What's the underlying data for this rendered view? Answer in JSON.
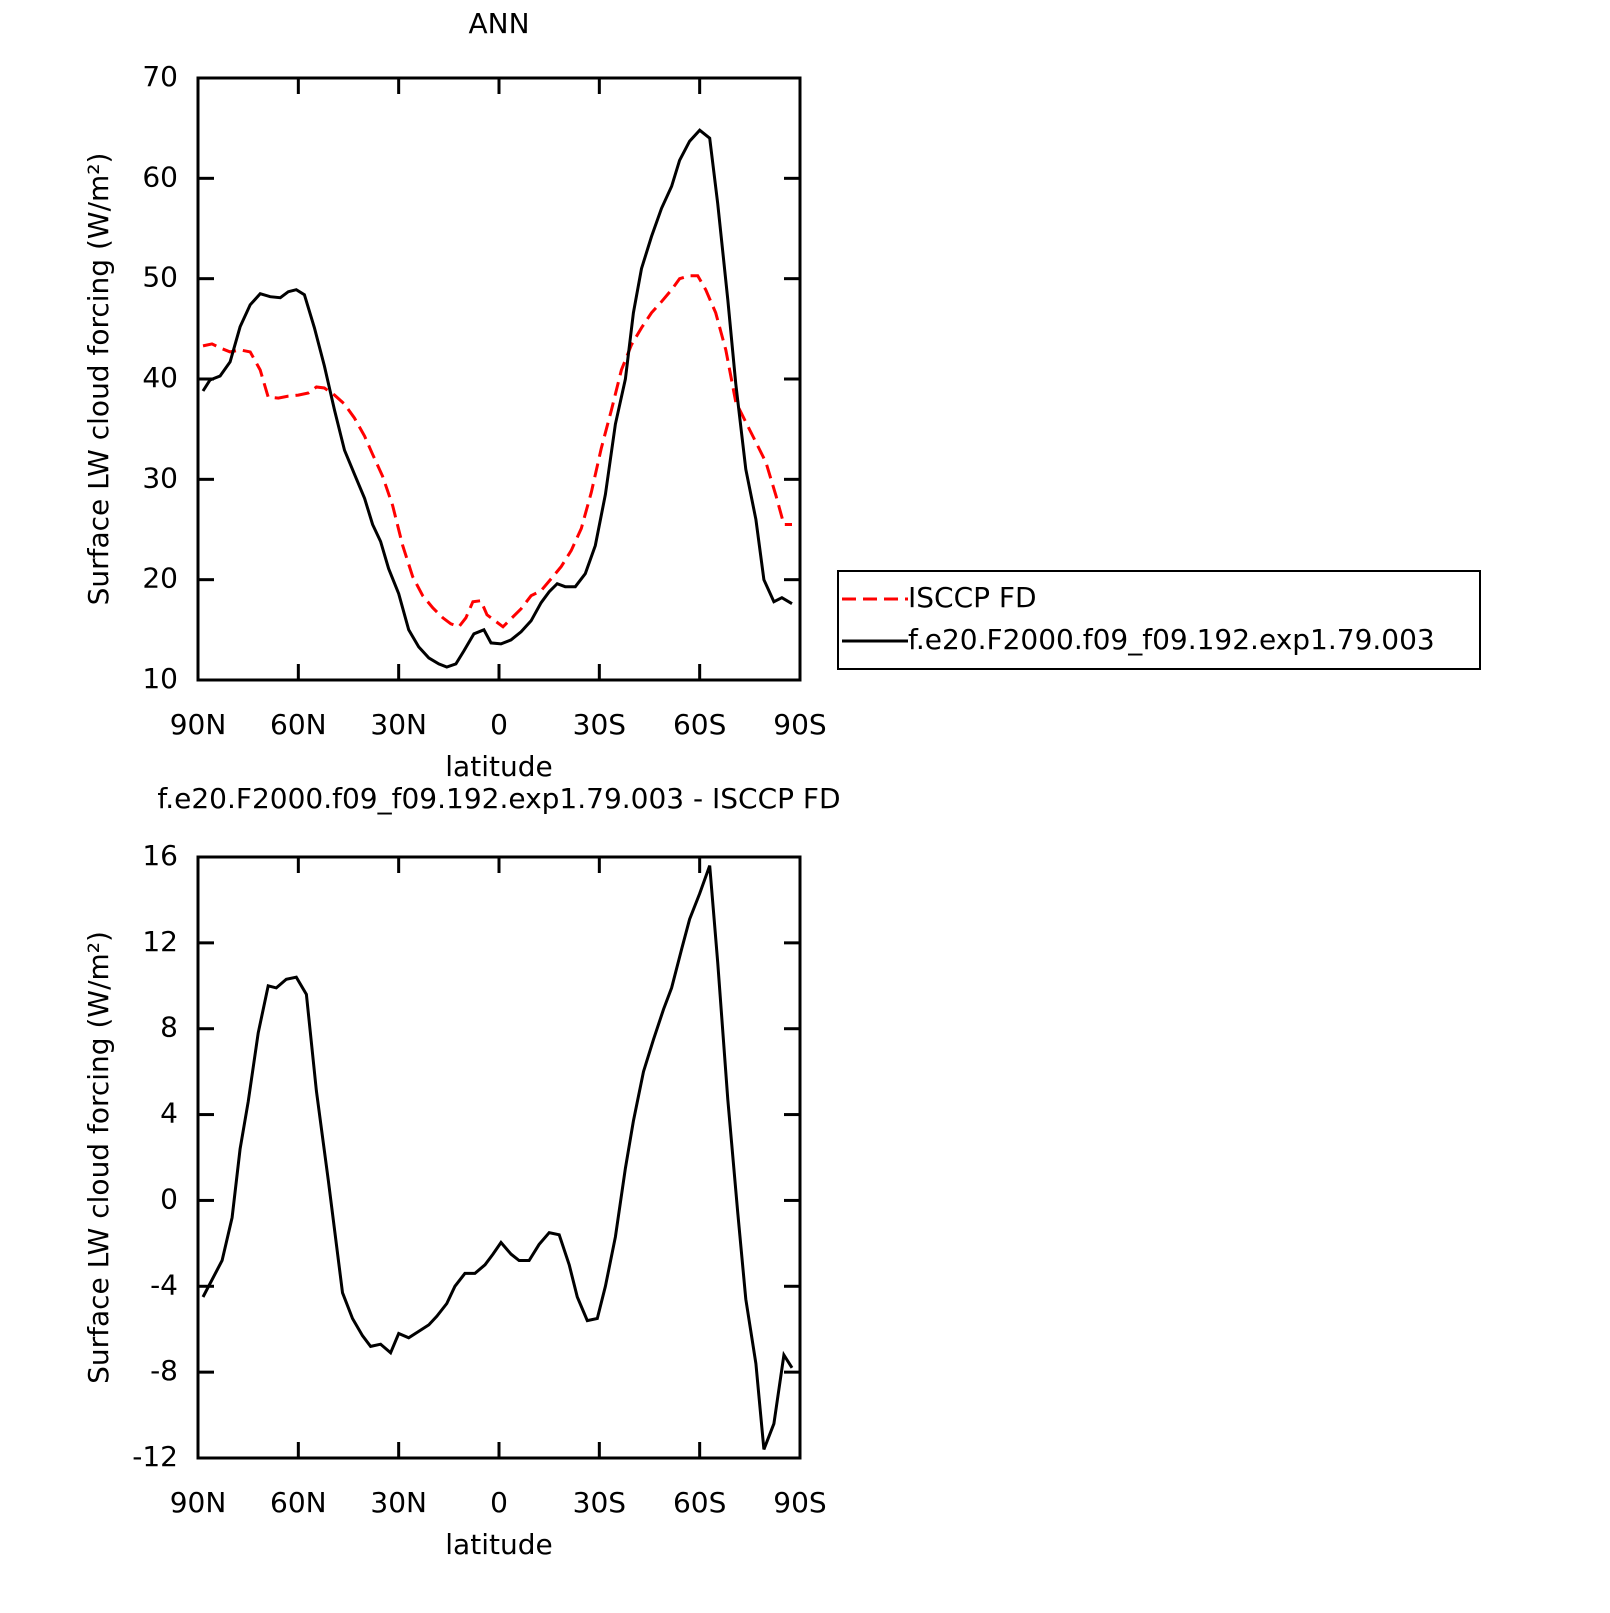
{
  "chart_data": [
    {
      "type": "line",
      "title": "ANN",
      "xlabel": "latitude",
      "ylabel": "Surface LW cloud forcing (W/m²)",
      "xlim": [
        90,
        -90
      ],
      "ylim": [
        10,
        70
      ],
      "xticks": [
        {
          "value": 90,
          "label": "90N"
        },
        {
          "value": 60,
          "label": "60N"
        },
        {
          "value": 30,
          "label": "30N"
        },
        0,
        {
          "value": -30,
          "label": "30S"
        },
        {
          "value": -60,
          "label": "60S"
        },
        {
          "value": -90,
          "label": "90S"
        }
      ],
      "yticks": [
        10,
        20,
        30,
        40,
        50,
        60,
        70
      ],
      "legend": "right",
      "series": [
        {
          "name": "ISCCP FD",
          "color": "#ff0000",
          "line_style": "dashed",
          "x": [
            88.5,
            85.8,
            83.4,
            80.4,
            77.4,
            74.4,
            71.4,
            69,
            66,
            63,
            60,
            57,
            54.6,
            52.2,
            49.2,
            46.2,
            43.2,
            40.2,
            37.8,
            34.8,
            31.8,
            28.8,
            25.8,
            22.8,
            19.8,
            16.8,
            14.4,
            12,
            9.9,
            7.8,
            5.4,
            3.6,
            1.2,
            -1.2,
            -3.6,
            -6.6,
            -9.6,
            -12.6,
            -15.6,
            -18.6,
            -21.6,
            -24.6,
            -27.6,
            -30.6,
            -33.6,
            -36.6,
            -39.6,
            -42.6,
            -45.6,
            -48.6,
            -51.6,
            -54,
            -57,
            -59.4,
            -61.8,
            -64.8,
            -67.8,
            -70.8,
            -73.8,
            -76.8,
            -79.8,
            -82.8,
            -85.2,
            -87.6
          ],
          "values": [
            43.3,
            43.5,
            43.1,
            42.7,
            42.9,
            42.7,
            40.9,
            38.2,
            38.1,
            38.3,
            38.4,
            38.6,
            39.2,
            39.1,
            38.4,
            37.5,
            36.1,
            34.3,
            32.5,
            30.3,
            27.4,
            23.4,
            20.3,
            18.4,
            17.2,
            16.2,
            15.6,
            15.3,
            16.2,
            17.8,
            17.9,
            16.5,
            15.9,
            15.3,
            16.1,
            17.1,
            18.4,
            18.9,
            20.1,
            21.3,
            22.9,
            25.1,
            28.7,
            33.1,
            36.9,
            40.9,
            43.4,
            45.1,
            46.6,
            47.7,
            48.9,
            50.0,
            50.3,
            50.3,
            48.9,
            46.6,
            42.9,
            37.7,
            35.7,
            33.7,
            31.7,
            28.4,
            25.5,
            25.5
          ]
        },
        {
          "name": "f.e20.F2000.f09_f09.192.exp1.79.003",
          "color": "#000000",
          "line_style": "solid",
          "x": [
            88.5,
            86.4,
            83.4,
            80.4,
            77.4,
            74.4,
            71.4,
            68.4,
            65.4,
            63,
            60.6,
            58.2,
            55.2,
            52.2,
            49.2,
            46.2,
            43.2,
            40.2,
            37.8,
            35.4,
            33,
            30,
            27,
            24,
            21,
            18,
            15.6,
            12.9,
            10.5,
            7.5,
            4.5,
            2.4,
            -0.6,
            -3.6,
            -6.6,
            -9.6,
            -12.6,
            -15,
            -17.4,
            -19.8,
            -22.8,
            -25.8,
            -28.8,
            -31.8,
            -34.8,
            -37.8,
            -40.2,
            -42.6,
            -45.6,
            -48.6,
            -51.6,
            -54,
            -57,
            -60,
            -63,
            -65.4,
            -68.4,
            -70.8,
            -73.8,
            -76.8,
            -79.2,
            -82.2,
            -84.6,
            -87.6
          ],
          "values": [
            38.8,
            39.9,
            40.3,
            41.7,
            45.2,
            47.4,
            48.5,
            48.2,
            48.1,
            48.7,
            48.9,
            48.4,
            45.1,
            41.3,
            36.9,
            32.9,
            30.5,
            28.1,
            25.5,
            23.8,
            21.1,
            18.6,
            15.0,
            13.3,
            12.2,
            11.6,
            11.3,
            11.6,
            12.9,
            14.6,
            15.0,
            13.7,
            13.6,
            14.0,
            14.8,
            15.9,
            17.7,
            18.8,
            19.6,
            19.3,
            19.3,
            20.6,
            23.4,
            28.5,
            35.5,
            40.0,
            46.6,
            51.0,
            54.2,
            57.0,
            59.2,
            61.8,
            63.7,
            64.8,
            64.0,
            57.5,
            47.9,
            39.5,
            31.0,
            26.0,
            20.0,
            17.8,
            18.2,
            17.6
          ]
        }
      ]
    },
    {
      "type": "line",
      "title": "f.e20.F2000.f09_f09.192.exp1.79.003 - ISCCP FD",
      "xlabel": "latitude",
      "ylabel": "Surface LW cloud forcing (W/m²)",
      "xlim": [
        90,
        -90
      ],
      "ylim": [
        -12,
        16
      ],
      "xticks": [
        {
          "value": 90,
          "label": "90N"
        },
        {
          "value": 60,
          "label": "60N"
        },
        {
          "value": 30,
          "label": "30N"
        },
        0,
        {
          "value": -30,
          "label": "30S"
        },
        {
          "value": -60,
          "label": "60S"
        },
        {
          "value": -90,
          "label": "90S"
        }
      ],
      "yticks": [
        -12,
        -8,
        -4,
        0,
        4,
        8,
        12,
        16
      ],
      "color": "#000000",
      "x": [
        88.5,
        82.8,
        79.8,
        77.4,
        75,
        72,
        69,
        66.6,
        63.6,
        60.6,
        57.6,
        54.6,
        51,
        46.8,
        43.8,
        40.8,
        38.4,
        35.4,
        32.4,
        30,
        27,
        24,
        21,
        18.6,
        15.6,
        13.2,
        10.2,
        7.2,
        4.2,
        1.8,
        -0.6,
        -3.6,
        -6,
        -9,
        -12,
        -15,
        -18,
        -21,
        -23.4,
        -26.4,
        -29.4,
        -31.8,
        -34.8,
        -37.8,
        -40.2,
        -43.2,
        -46.2,
        -49.2,
        -51.6,
        -54.6,
        -57,
        -60,
        -63,
        -65.4,
        -68.4,
        -71.4,
        -73.8,
        -76.8,
        -79.2,
        -82.2,
        -85.2,
        -87.6
      ],
      "values": [
        -4.5,
        -2.8,
        -0.8,
        2.4,
        4.6,
        7.8,
        10.0,
        9.9,
        10.3,
        10.4,
        9.6,
        5.1,
        0.9,
        -4.3,
        -5.5,
        -6.3,
        -6.8,
        -6.7,
        -7.1,
        -6.2,
        -6.4,
        -6.1,
        -5.8,
        -5.4,
        -4.8,
        -4.0,
        -3.4,
        -3.4,
        -3.0,
        -2.5,
        -1.96,
        -2.5,
        -2.8,
        -2.8,
        -2.05,
        -1.5,
        -1.6,
        -3.0,
        -4.5,
        -5.6,
        -5.5,
        -4.0,
        -1.7,
        1.5,
        3.7,
        6.0,
        7.5,
        8.9,
        9.9,
        11.7,
        13.1,
        14.3,
        15.6,
        11.1,
        4.7,
        -0.6,
        -4.6,
        -7.6,
        -11.6,
        -10.4,
        -7.2,
        -7.8
      ]
    }
  ]
}
